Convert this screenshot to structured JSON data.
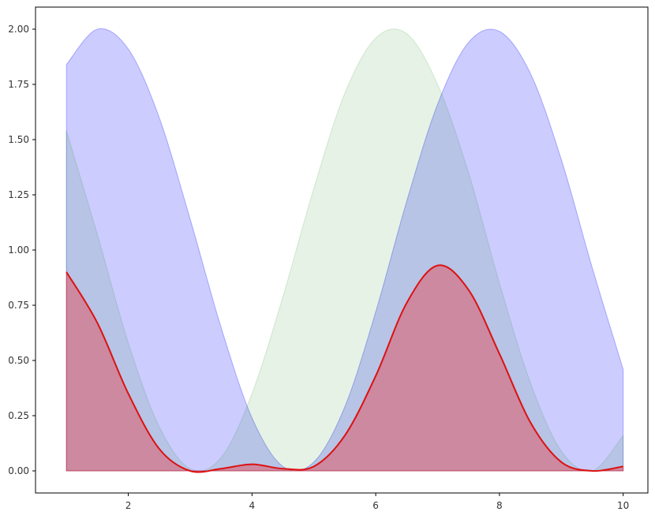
{
  "chart_data": {
    "type": "area",
    "title": "",
    "xlabel": "",
    "ylabel": "",
    "xlim": [
      0.5,
      10.4
    ],
    "ylim": [
      -0.1,
      2.1
    ],
    "x_ticks": [
      2,
      4,
      6,
      8,
      10
    ],
    "y_ticks": [
      0.0,
      0.25,
      0.5,
      0.75,
      1.0,
      1.25,
      1.5,
      1.75,
      2.0
    ],
    "x_tick_labels": [
      "2",
      "4",
      "6",
      "8",
      "10"
    ],
    "y_tick_labels": [
      "0.00",
      "0.25",
      "0.50",
      "0.75",
      "1.00",
      "1.25",
      "1.50",
      "1.75",
      "2.00"
    ],
    "grid": false,
    "legend": "none",
    "series": [
      {
        "fill": "#0000ff",
        "fill_opacity": 0.2,
        "x": [
          1.0,
          1.5,
          2.0,
          2.5,
          3.0,
          3.5,
          4.0,
          4.5,
          5.0,
          5.5,
          6.0,
          6.5,
          7.0,
          7.5,
          8.0,
          8.5,
          9.0,
          9.5,
          10.0
        ],
        "values": [
          1.84,
          2.0,
          1.91,
          1.6,
          1.14,
          0.65,
          0.24,
          0.02,
          0.04,
          0.29,
          0.72,
          1.22,
          1.66,
          1.94,
          1.99,
          1.8,
          1.41,
          0.92,
          0.46
        ]
      },
      {
        "fill": "#008000",
        "fill_opacity": 0.1,
        "x": [
          1.0,
          1.5,
          2.0,
          2.5,
          3.0,
          3.5,
          4.0,
          4.5,
          5.0,
          5.5,
          6.0,
          6.5,
          7.0,
          7.5,
          8.0,
          8.5,
          9.0,
          9.5,
          10.0
        ],
        "values": [
          1.54,
          1.07,
          0.58,
          0.2,
          0.01,
          0.06,
          0.35,
          0.79,
          1.28,
          1.71,
          1.96,
          1.98,
          1.75,
          1.35,
          0.85,
          0.4,
          0.09,
          0.0,
          0.16
        ]
      },
      {
        "fill": "#ff0000",
        "fill_opacity": 0.3,
        "x": [
          1.0,
          1.5,
          2.0,
          2.5,
          3.0,
          3.5,
          4.0,
          4.5,
          5.0,
          5.5,
          6.0,
          6.5,
          7.0,
          7.5,
          8.0,
          8.5,
          9.0,
          9.5,
          10.0
        ],
        "values": [
          0.9,
          0.67,
          0.35,
          0.1,
          0.0,
          0.01,
          0.03,
          0.01,
          0.02,
          0.16,
          0.43,
          0.76,
          0.93,
          0.82,
          0.53,
          0.22,
          0.04,
          0.0,
          0.02
        ]
      },
      {
        "stroke": "#dd1111",
        "x": [
          1.0,
          1.5,
          2.0,
          2.5,
          3.0,
          3.5,
          4.0,
          4.5,
          5.0,
          5.5,
          6.0,
          6.5,
          7.0,
          7.5,
          8.0,
          8.5,
          9.0,
          9.5,
          10.0
        ],
        "values": [
          0.9,
          0.67,
          0.35,
          0.1,
          0.0,
          0.01,
          0.03,
          0.01,
          0.02,
          0.16,
          0.43,
          0.76,
          0.93,
          0.82,
          0.53,
          0.22,
          0.04,
          0.0,
          0.02
        ]
      }
    ]
  }
}
